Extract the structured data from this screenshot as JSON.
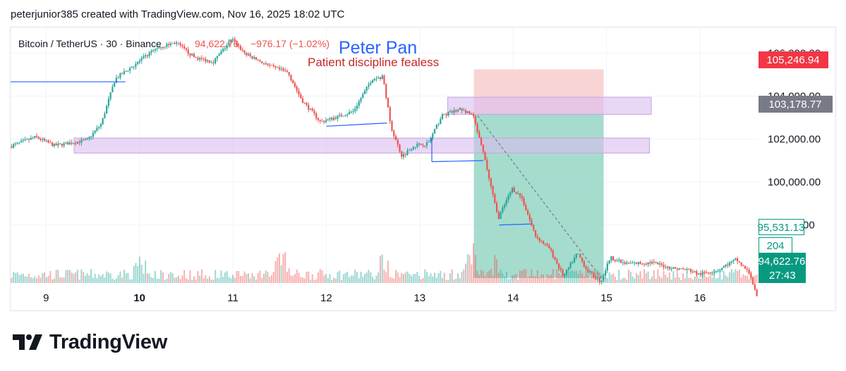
{
  "header": {
    "attribution": "peterjunior385 created with TradingView.com, Nov 16, 2025 18:02 UTC"
  },
  "legend": {
    "symbol": "Bitcoin / TetherUS · 30 · Binance",
    "price": "94,622.76",
    "change": "−976.17 (−1.02%)"
  },
  "annotations": {
    "title": "Peter Pan",
    "subtitle": "Patient discipline fealess"
  },
  "price_tags": {
    "stop": "105,246.94",
    "entry": "103,178.77",
    "target": "95,531.13",
    "volume": "204",
    "last": "94,622.76",
    "countdown": "27:43"
  },
  "footer": {
    "brand": "TradingView"
  },
  "colors": {
    "up": "#26a69a",
    "down": "#ef5350",
    "stop_zone": "#f7c5c7",
    "profit_zone": "#8fd3c2",
    "supply_zone": "#d9bdee",
    "title_blue": "#2962ff",
    "subtitle_red": "#c62828",
    "trendline": "#2962ff"
  },
  "chart_data": {
    "type": "candlestick",
    "symbol": "Bitcoin / TetherUS",
    "timeframe": "30",
    "exchange": "Binance",
    "x_tick_labels": [
      "9",
      "10",
      "11",
      "12",
      "13",
      "14",
      "15",
      "16"
    ],
    "y_tick_labels": [
      "98,000.00",
      "100,000.00",
      "102,000.00",
      "104,000.00",
      "106,000.00"
    ],
    "ylim": [
      95300,
      107200
    ],
    "xlim": [
      8.62,
      16.62
    ],
    "price_path": [
      [
        8.62,
        101650
      ],
      [
        8.9,
        102100
      ],
      [
        9.1,
        101700
      ],
      [
        9.45,
        101950
      ],
      [
        9.6,
        102700
      ],
      [
        9.75,
        104800
      ],
      [
        10.0,
        105600
      ],
      [
        10.2,
        106250
      ],
      [
        10.4,
        106500
      ],
      [
        10.6,
        105800
      ],
      [
        10.8,
        105600
      ],
      [
        11.0,
        106650
      ],
      [
        11.15,
        105950
      ],
      [
        11.4,
        105400
      ],
      [
        11.6,
        105100
      ],
      [
        11.75,
        103800
      ],
      [
        11.95,
        102800
      ],
      [
        12.1,
        103000
      ],
      [
        12.3,
        103300
      ],
      [
        12.5,
        104800
      ],
      [
        12.62,
        104900
      ],
      [
        12.7,
        102600
      ],
      [
        12.82,
        101200
      ],
      [
        12.95,
        101700
      ],
      [
        13.1,
        101800
      ],
      [
        13.25,
        103100
      ],
      [
        13.45,
        103400
      ],
      [
        13.58,
        103100
      ],
      [
        13.7,
        101200
      ],
      [
        13.85,
        98300
      ],
      [
        14.0,
        99700
      ],
      [
        14.1,
        99300
      ],
      [
        14.25,
        97500
      ],
      [
        14.4,
        96900
      ],
      [
        14.55,
        95600
      ],
      [
        14.7,
        96700
      ],
      [
        14.8,
        95900
      ],
      [
        14.95,
        95350
      ],
      [
        15.05,
        96500
      ],
      [
        15.2,
        96200
      ],
      [
        15.5,
        96250
      ],
      [
        15.7,
        96000
      ],
      [
        15.9,
        95900
      ],
      [
        16.0,
        95700
      ],
      [
        16.2,
        95900
      ],
      [
        16.4,
        96400
      ],
      [
        16.55,
        95700
      ],
      [
        16.62,
        94622.76
      ]
    ],
    "position": {
      "type": "short",
      "x_start": 13.58,
      "x_end": 14.97,
      "stop": 105246.94,
      "entry": 103178.77,
      "target": 95531.13
    },
    "zones": [
      {
        "y_low": 103150,
        "y_high": 103950,
        "x_start": 13.3,
        "x_end": 15.48
      },
      {
        "y_low": 101350,
        "y_high": 102050,
        "x_start": 9.3,
        "x_end": 15.46
      }
    ],
    "lines": [
      {
        "x1": 8.62,
        "y1": 104670,
        "x2": 9.85,
        "y2": 104670
      },
      {
        "x1": 12.0,
        "y1": 102600,
        "x2": 12.65,
        "y2": 102750
      },
      {
        "x1": 13.13,
        "y1": 102050,
        "x2": 13.13,
        "y2": 100950
      },
      {
        "x1": 13.13,
        "y1": 100950,
        "x2": 13.68,
        "y2": 101000
      },
      {
        "x1": 13.85,
        "y1": 98000,
        "x2": 14.2,
        "y2": 98050
      },
      {
        "x1": 13.62,
        "y1": 103100,
        "x2": 14.95,
        "y2": 95500,
        "dashed": true
      }
    ],
    "volume_spikes": [
      [
        10.0,
        35
      ],
      [
        11.5,
        60
      ],
      [
        12.6,
        48
      ],
      [
        13.55,
        52
      ],
      [
        13.75,
        60
      ]
    ],
    "last_price": 94622.76,
    "grid": true
  }
}
